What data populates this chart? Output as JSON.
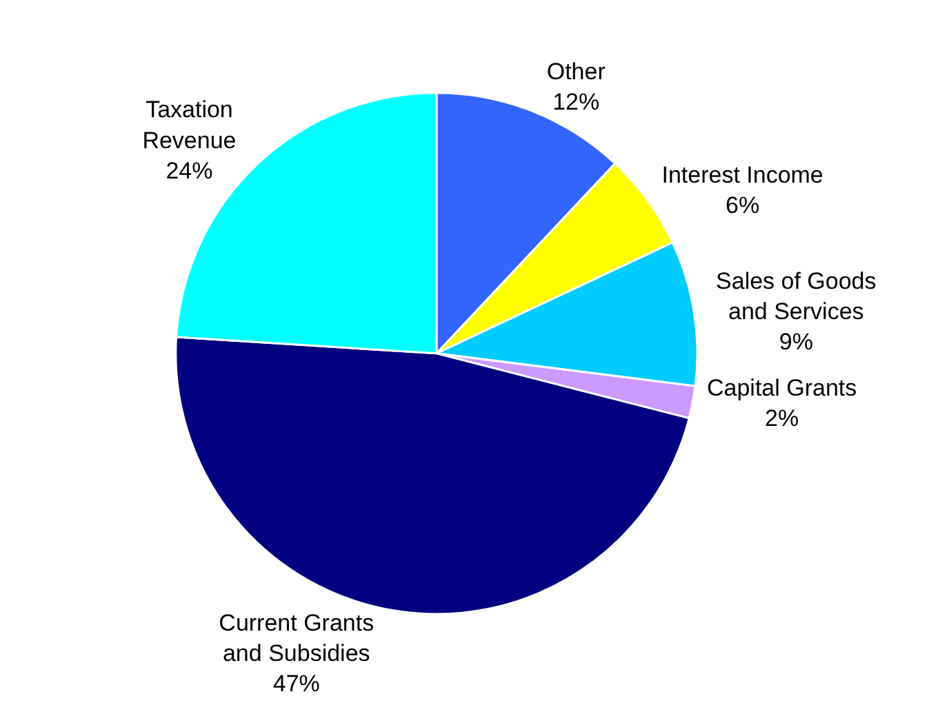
{
  "chart_data": {
    "type": "pie",
    "categories": [
      "Other",
      "Interest Income",
      "Sales of Goods\nand Services",
      "Capital Grants",
      "Current Grants\nand Subsidies",
      "Taxation\nRevenue"
    ],
    "values": [
      12,
      6,
      9,
      2,
      47,
      24
    ],
    "value_labels": [
      "12%",
      "6%",
      "9%",
      "2%",
      "47%",
      "24%"
    ],
    "colors": [
      "#3366ff",
      "#ffff00",
      "#00ccff",
      "#cc99ff",
      "#000080",
      "#00ffff"
    ],
    "legend": false
  }
}
